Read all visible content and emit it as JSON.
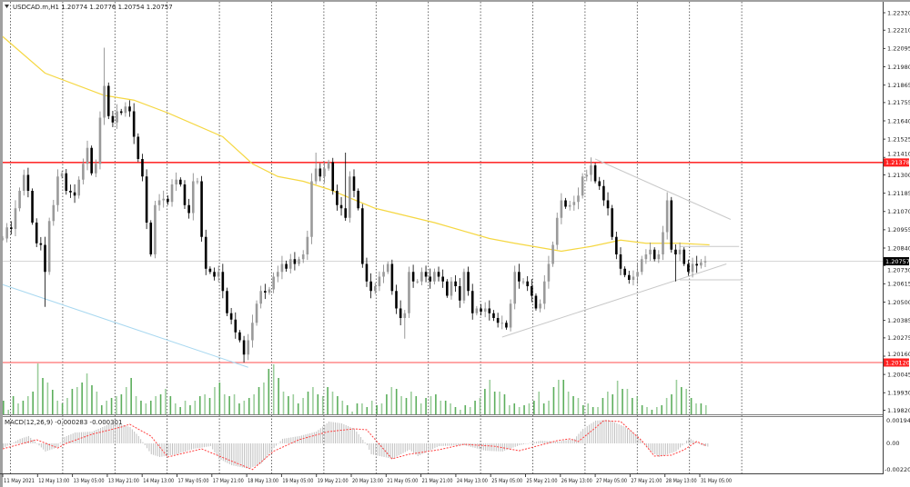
{
  "header": {
    "symbol_info": "USDCAD.m,H1  1.20774  1.20776  1.20754  1.20757",
    "menu_icon": "triangle-down-icon"
  },
  "macd_label": "MACD(12,26,9) -0.000283 -0.000301",
  "colors": {
    "bull": "#9a9a9a",
    "bear": "#000000",
    "ma": "#f5d742",
    "resistance": "#ff3030",
    "support": "#ff7070",
    "trend_blue": "#a8d8f0",
    "trend_gray": "#c8c8c8",
    "volume": "#5cae5c",
    "macd_hist": "#c0c0c0",
    "macd_signal": "#ff4040",
    "current_price_bg": "#000000",
    "level_bg": "#ff2020"
  },
  "chart_data": {
    "type": "candlestick",
    "timeframe": "H1",
    "price_axis_labels": [
      "1.22320",
      "1.22210",
      "1.22095",
      "1.21980",
      "1.21865",
      "1.21755",
      "1.21640",
      "1.21525",
      "1.21410",
      "1.21300",
      "1.21185",
      "1.21070",
      "1.20955",
      "1.20840",
      "1.20730",
      "1.20615",
      "1.20500",
      "1.20385",
      "1.20275",
      "1.20160",
      "1.20045",
      "1.19930",
      "1.19820"
    ],
    "highlighted_levels": [
      {
        "label": "1.21378",
        "value": 1.21378,
        "kind": "resistance"
      },
      {
        "label": "1.20120",
        "value": 1.2012,
        "kind": "support"
      }
    ],
    "current_price": {
      "label": "1.20757",
      "value": 1.20757
    },
    "time_labels": [
      "11 May 2021",
      "12 May 13:00",
      "13 May 05:00",
      "13 May 21:00",
      "14 May 13:00",
      "17 May 05:00",
      "17 May 21:00",
      "18 May 13:00",
      "19 May 05:00",
      "19 May 21:00",
      "20 May 13:00",
      "21 May 05:00",
      "21 May 21:00",
      "24 May 13:00",
      "25 May 05:00",
      "25 May 21:00",
      "26 May 13:00",
      "27 May 05:00",
      "27 May 21:00",
      "28 May 13:00",
      "31 May 05:00"
    ],
    "closes": [
      1.209,
      1.2097,
      1.2096,
      1.2109,
      1.212,
      1.213,
      1.212,
      1.21,
      1.2087,
      1.2086,
      1.2069,
      1.2101,
      1.2111,
      1.2129,
      1.2131,
      1.212,
      1.2119,
      1.2117,
      1.2127,
      1.2137,
      1.2147,
      1.2131,
      1.2137,
      1.2166,
      1.2186,
      1.2167,
      1.2163,
      1.217,
      1.2169,
      1.2173,
      1.217,
      1.2154,
      1.214,
      1.2129,
      1.21,
      1.208,
      1.2111,
      1.2114,
      1.2115,
      1.2113,
      1.2124,
      1.2127,
      1.2124,
      1.2111,
      1.2106,
      1.2126,
      1.2126,
      1.2091,
      1.2071,
      1.2069,
      1.2066,
      1.2069,
      1.2057,
      1.2043,
      1.2039,
      1.2031,
      1.2026,
      1.2017,
      1.2026,
      1.2037,
      1.2049,
      1.2057,
      1.2056,
      1.2058,
      1.2066,
      1.2069,
      1.2074,
      1.2071,
      1.2077,
      1.2074,
      1.2077,
      1.208,
      1.2091,
      1.2126,
      1.2134,
      1.2129,
      1.2134,
      1.2138,
      1.212,
      1.2111,
      1.2109,
      1.2103,
      1.2129,
      1.212,
      1.2109,
      1.2074,
      1.2063,
      1.2057,
      1.206,
      1.2066,
      1.2069,
      1.2074,
      1.2057,
      1.2046,
      1.204,
      1.2043,
      1.2069,
      1.2063,
      1.2063,
      1.2069,
      1.2066,
      1.2063,
      1.2069,
      1.2066,
      1.2063,
      1.2054,
      1.2063,
      1.206,
      1.2051,
      1.2069,
      1.2057,
      1.2043,
      1.2046,
      1.2044,
      1.2046,
      1.2043,
      1.204,
      1.2037,
      1.2037,
      1.2034,
      1.2049,
      1.2069,
      1.2063,
      1.2063,
      1.206,
      1.2054,
      1.2046,
      1.2049,
      1.2063,
      1.2074,
      1.2086,
      1.2103,
      1.2114,
      1.211,
      1.2111,
      1.2113,
      1.2117,
      1.2129,
      1.213,
      1.2136,
      1.2126,
      1.2123,
      1.2114,
      1.2109,
      1.2091,
      1.208,
      1.2071,
      1.2067,
      1.2064,
      1.2066,
      1.2069,
      1.2077,
      1.208,
      1.2083,
      1.2077,
      1.208,
      1.2094,
      1.2114,
      1.2083,
      1.208,
      1.2083,
      1.2074,
      1.2069,
      1.2074,
      1.2073,
      1.2075,
      1.20757
    ],
    "wick_extremes": [
      [
        24,
        1.221
      ],
      [
        10,
        1.2047
      ],
      [
        57,
        1.2012
      ],
      [
        74,
        1.2144
      ],
      [
        81,
        1.2144
      ],
      [
        95,
        1.2027
      ],
      [
        139,
        1.2141
      ],
      [
        157,
        1.2118
      ],
      [
        159,
        1.2063
      ]
    ],
    "moving_average": [
      [
        0,
        1.2217
      ],
      [
        10,
        1.2194
      ],
      [
        24,
        1.218
      ],
      [
        31,
        1.2177
      ],
      [
        39,
        1.2169
      ],
      [
        52,
        1.2154
      ],
      [
        59,
        1.2137
      ],
      [
        65,
        1.2129
      ],
      [
        71,
        1.2126
      ],
      [
        77,
        1.2121
      ],
      [
        88,
        1.2109
      ],
      [
        102,
        1.21
      ],
      [
        115,
        1.209
      ],
      [
        121,
        1.2087
      ],
      [
        132,
        1.2082
      ],
      [
        139,
        1.2085
      ],
      [
        146,
        1.2089
      ],
      [
        152,
        1.2087
      ],
      [
        160,
        1.2087
      ],
      [
        167,
        1.2086
      ]
    ],
    "trendlines": [
      {
        "color": "trend_blue",
        "from": [
          0,
          1.2061
        ],
        "to": [
          58,
          1.2009
        ]
      },
      {
        "color": "trend_gray",
        "from": [
          118,
          1.2028
        ],
        "to": [
          171,
          1.2074
        ]
      },
      {
        "color": "trend_gray",
        "from": [
          140,
          1.214
        ],
        "to": [
          172,
          1.2102
        ]
      },
      {
        "color": "trend_gray",
        "from": [
          160,
          1.2085
        ],
        "to": [
          174,
          1.2085
        ]
      },
      {
        "color": "trend_gray",
        "from": [
          160,
          1.2064
        ],
        "to": [
          175,
          1.2064
        ]
      }
    ],
    "volumes": [
      15,
      5,
      20,
      12,
      15,
      20,
      25,
      56,
      40,
      35,
      27,
      15,
      12,
      18,
      28,
      30,
      35,
      45,
      32,
      25,
      10,
      15,
      18,
      20,
      22,
      30,
      40,
      20,
      15,
      12,
      15,
      20,
      22,
      28,
      20,
      12,
      8,
      15,
      10,
      15,
      20,
      22,
      18,
      30,
      35,
      22,
      20,
      22,
      12,
      15,
      18,
      22,
      30,
      35,
      50,
      55,
      40,
      25,
      20,
      22,
      12,
      18,
      25,
      30,
      22,
      20,
      30,
      25,
      20,
      15,
      10,
      3,
      12,
      12,
      8,
      15,
      10,
      12,
      22,
      30,
      28,
      20,
      18,
      25,
      20,
      12,
      18,
      20,
      22,
      15,
      15,
      12,
      8,
      5,
      10,
      8,
      15,
      18,
      28,
      38,
      25,
      25,
      22,
      10,
      12,
      8,
      10,
      12,
      15,
      25,
      12,
      15,
      30,
      38,
      38,
      25,
      20,
      18,
      10,
      12,
      8,
      8,
      18,
      25,
      22,
      37,
      28,
      28,
      18,
      20,
      10,
      8,
      5,
      8,
      10,
      18,
      22,
      38,
      30,
      28,
      18,
      12,
      12,
      10
    ],
    "macd_axis_labels": {
      "top": "0.001949",
      "zero": "0.00",
      "bottom": "-0.002201"
    },
    "macd_hist": [
      [
        0,
        -0.00035
      ],
      [
        4,
        0.00035
      ],
      [
        6,
        0.00056
      ],
      [
        8,
        0
      ],
      [
        10,
        -0.00062
      ],
      [
        13,
        -0.00028
      ],
      [
        14,
        0.00042
      ],
      [
        17,
        0.00083
      ],
      [
        21,
        0.0009
      ],
      [
        25,
        0.00146
      ],
      [
        27,
        0.00153
      ],
      [
        30,
        0.00125
      ],
      [
        32,
        0.00056
      ],
      [
        35,
        -0.00083
      ],
      [
        37,
        -0.00104
      ],
      [
        41,
        -0.00083
      ],
      [
        45,
        -0.00042
      ],
      [
        49,
        -0.00021
      ],
      [
        51,
        -0.00118
      ],
      [
        54,
        -0.00167
      ],
      [
        58,
        -0.00194
      ],
      [
        61,
        -0.00153
      ],
      [
        64,
        -0.00035
      ],
      [
        66,
        0.00035
      ],
      [
        70,
        0.00056
      ],
      [
        74,
        0.0009
      ],
      [
        77,
        0.00167
      ],
      [
        80,
        0.00153
      ],
      [
        83,
        0.00111
      ],
      [
        86,
        -0.00014
      ],
      [
        87,
        -0.00083
      ],
      [
        92,
        -0.00118
      ],
      [
        96,
        -0.00049
      ],
      [
        98,
        -0.00097
      ],
      [
        103,
        -0.00021
      ],
      [
        109,
        -0.00014
      ],
      [
        114,
        -0.00056
      ],
      [
        118,
        -0.00062
      ],
      [
        122,
        -0.00014
      ],
      [
        127,
        0.00021
      ],
      [
        131,
        0.00014
      ],
      [
        135,
        0.00035
      ],
      [
        137,
        0.00111
      ],
      [
        140,
        0.00174
      ],
      [
        143,
        0.0018
      ],
      [
        147,
        0.00125
      ],
      [
        150,
        0.00056
      ],
      [
        153,
        -0.00062
      ],
      [
        155,
        -0.00104
      ],
      [
        159,
        -0.00062
      ],
      [
        161,
        0
      ],
      [
        162,
        0.00042
      ],
      [
        165,
        -0.00014
      ],
      [
        167,
        -0.00028
      ]
    ],
    "macd_signal": [
      [
        0,
        -0.00042
      ],
      [
        8,
        0.00028
      ],
      [
        13,
        -0.00035
      ],
      [
        15,
        0
      ],
      [
        21,
        0.00069
      ],
      [
        28,
        0.00125
      ],
      [
        30,
        0.00146
      ],
      [
        35,
        0.00056
      ],
      [
        39,
        -0.00104
      ],
      [
        47,
        -0.00042
      ],
      [
        59,
        -0.002
      ],
      [
        64,
        -0.0006
      ],
      [
        70,
        0.00028
      ],
      [
        77,
        0.0009
      ],
      [
        83,
        0.00111
      ],
      [
        86,
        0.00104
      ],
      [
        92,
        -0.00118
      ],
      [
        96,
        -0.00083
      ],
      [
        103,
        -0.00049
      ],
      [
        109,
        -7e-05
      ],
      [
        116,
        -0.00021
      ],
      [
        122,
        -0.00056
      ],
      [
        127,
        -0.00014
      ],
      [
        131,
        0.00021
      ],
      [
        134,
        0.00035
      ],
      [
        136,
        0.00014
      ],
      [
        140,
        0.00118
      ],
      [
        142,
        0.00174
      ],
      [
        146,
        0.00167
      ],
      [
        151,
        0.00021
      ],
      [
        154,
        -0.00097
      ],
      [
        158,
        -0.0009
      ],
      [
        161,
        -0.00049
      ],
      [
        164,
        0.00014
      ],
      [
        167,
        -0.0003
      ]
    ]
  }
}
